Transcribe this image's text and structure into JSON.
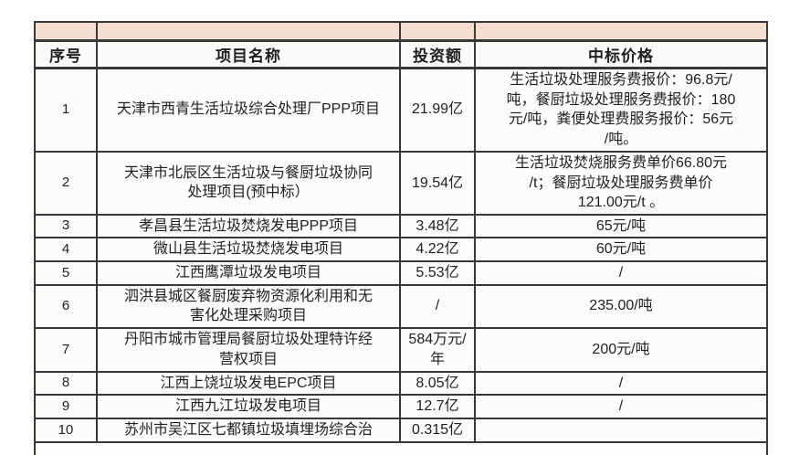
{
  "page": {
    "background_color": "#ffffff",
    "accent_band_color": "#f6ddd2",
    "border_color": "#383838",
    "text_color": "#1f1f1f"
  },
  "table": {
    "columns": [
      {
        "key": "index",
        "label": "序号"
      },
      {
        "key": "name",
        "label": "项目名称"
      },
      {
        "key": "investment",
        "label": "投资额"
      },
      {
        "key": "price",
        "label": "中标价格"
      }
    ],
    "rows": [
      {
        "index": "1",
        "name": "天津市西青生活垃圾综合处理厂PPP项目",
        "investment": "21.99亿",
        "price": "生活垃圾处理服务费报价：96.8元/\n吨，餐厨垃圾处理服务费报价：180\n元/吨，粪便处理费服务报价：56元\n/吨。"
      },
      {
        "index": "2",
        "name": "天津市北辰区生活垃圾与餐厨垃圾协同\n处理项目(预中标）",
        "investment": "19.54亿",
        "price": "生活垃圾焚烧服务费单价66.80元\n/t；餐厨垃圾处理服务费单价\n121.00元/t 。"
      },
      {
        "index": "3",
        "name": "孝昌县生活垃圾焚烧发电PPP项目",
        "investment": "3.48亿",
        "price": "65元/吨"
      },
      {
        "index": "4",
        "name": "微山县生活垃圾焚烧发电项目",
        "investment": "4.22亿",
        "price": "60元/吨"
      },
      {
        "index": "5",
        "name": "江西鹰潭垃圾发电项目",
        "investment": "5.53亿",
        "price": "/"
      },
      {
        "index": "6",
        "name": "泗洪县城区餐厨废弃物资源化利用和无\n害化处理采购项目",
        "investment": "/",
        "price": "235.00/吨"
      },
      {
        "index": "7",
        "name": "丹阳市城市管理局餐厨垃圾处理特许经\n营权项目",
        "investment": "584万元/\n年",
        "price": "200元/吨"
      },
      {
        "index": "8",
        "name": "江西上饶垃圾发电EPC项目",
        "investment": "8.05亿",
        "price": "/"
      },
      {
        "index": "9",
        "name": "江西九江垃圾发电项目",
        "investment": "12.7亿",
        "price": "/"
      },
      {
        "index": "10",
        "name": "苏州市吴江区七都镇垃圾填埋场综合治",
        "investment": "0.315亿",
        "price": ""
      }
    ]
  }
}
